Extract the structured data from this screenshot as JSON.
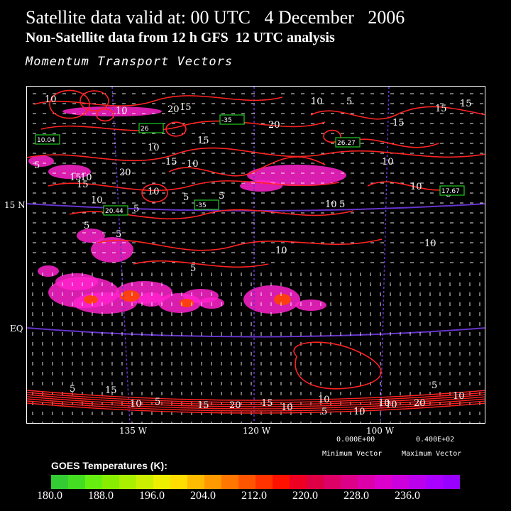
{
  "title": {
    "line1": "Satellite data valid at: 00 UTC   4 December   2006",
    "line2": "Non-Satellite data from 12 h GFS  12 UTC analysis",
    "line3": "Momentum Transport Vectors"
  },
  "axes": {
    "lat_labels": [
      "15 N",
      "EQ"
    ],
    "lon_labels": [
      "135 W",
      "120 W",
      "100 W"
    ]
  },
  "contour_labels": [
    "10",
    "10",
    "15",
    "20",
    "5",
    "10",
    "15",
    "20",
    "10",
    "15",
    "5",
    "15",
    "10",
    "10",
    "15",
    "20",
    "5",
    "10",
    "5",
    "15",
    "5",
    "10",
    "10",
    "10",
    "10",
    "5",
    "5",
    "5",
    "5",
    "5",
    "10",
    "5",
    "15",
    "5",
    "10",
    "10",
    "10",
    "15",
    "20",
    "5",
    "15",
    "10",
    "5",
    "15",
    "10",
    "5",
    "10",
    "10",
    "20",
    "10",
    "15"
  ],
  "boxed_values": [
    "10.04",
    "26",
    "-35",
    "20.44",
    "-35",
    "26.27",
    "17.67"
  ],
  "vector_legend": {
    "min_value": "0.000E+00",
    "max_value": "0.400E+02",
    "min_label": "Minimum Vector",
    "max_label": "Maximum Vector"
  },
  "colorbar": {
    "title": "GOES Temperatures (K):",
    "ticks": [
      "180.0",
      "188.0",
      "196.0",
      "204.0",
      "212.0",
      "220.0",
      "228.0",
      "236.0"
    ],
    "colors": [
      "#33cc33",
      "#44dd22",
      "#66ee11",
      "#88ee00",
      "#aaee00",
      "#ccee00",
      "#eeee00",
      "#ffdd00",
      "#ffbb00",
      "#ff9900",
      "#ff7700",
      "#ff5500",
      "#ff3300",
      "#ff1100",
      "#ee0022",
      "#dd0044",
      "#dd0066",
      "#dd0088",
      "#dd00aa",
      "#dd00cc",
      "#cc00dd",
      "#bb00ee",
      "#aa00ff",
      "#9900ff"
    ]
  },
  "colors": {
    "contour": "#ff2222",
    "grid": "#6633cc",
    "cloud": "#ff22cc",
    "vector": "#ffffff"
  }
}
